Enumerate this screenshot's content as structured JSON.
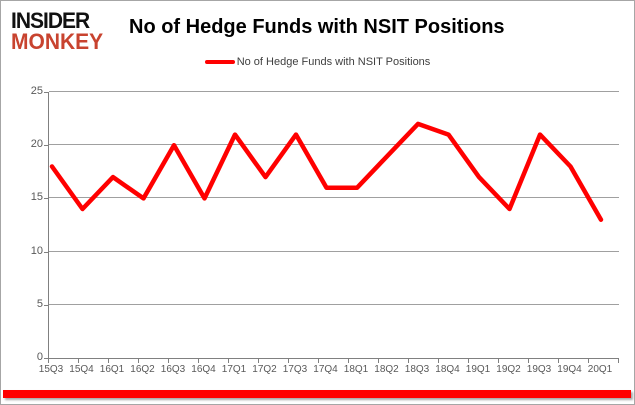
{
  "logo": {
    "line1": "INSIDER",
    "line2": "MONKEY"
  },
  "header": {
    "title": "No of Hedge Funds with NSIT Positions"
  },
  "legend": {
    "label": "No of Hedge Funds with NSIT Positions"
  },
  "colors": {
    "series_line": "#ff0000",
    "logo_black": "#111111",
    "logo_red": "#c8432f",
    "grid": "#a0a0a0",
    "axis": "#808080",
    "tick_text": "#595959",
    "footer_bar": "#ff0000"
  },
  "chart_data": {
    "type": "line",
    "title": "No of Hedge Funds with NSIT Positions",
    "series_name": "No of Hedge Funds with NSIT Positions",
    "categories": [
      "15Q3",
      "15Q4",
      "16Q1",
      "16Q2",
      "16Q3",
      "16Q4",
      "17Q1",
      "17Q2",
      "17Q3",
      "17Q4",
      "18Q1",
      "18Q2",
      "18Q3",
      "18Q4",
      "19Q1",
      "19Q2",
      "19Q3",
      "19Q4",
      "20Q1"
    ],
    "values": [
      18,
      14,
      17,
      15,
      20,
      15,
      21,
      17,
      21,
      16,
      16,
      19,
      22,
      21,
      17,
      14,
      21,
      18,
      13
    ],
    "ylim": [
      0,
      25
    ],
    "yticks": [
      0,
      5,
      10,
      15,
      20,
      25
    ],
    "xlabel": "",
    "ylabel": "",
    "grid": true,
    "legend_position": "top-center",
    "line_color": "#ff0000"
  }
}
